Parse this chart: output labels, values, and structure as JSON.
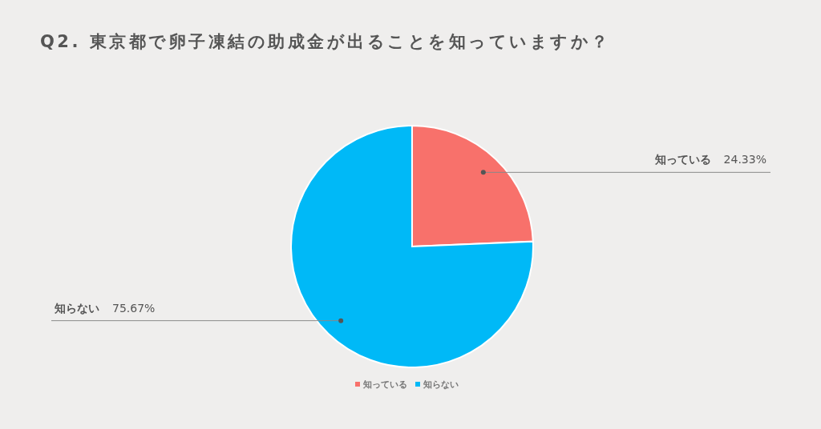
{
  "chart_data": {
    "type": "pie",
    "title": "Q2. 東京都で卵子凍結の助成金が出ることを知っていますか？",
    "categories": [
      "知っている",
      "知らない"
    ],
    "values": [
      24.33,
      75.67
    ],
    "colors": [
      "#f8716b",
      "#00b9f7"
    ],
    "value_labels": [
      "24.33%",
      "75.67%"
    ],
    "legend": "bottom"
  }
}
